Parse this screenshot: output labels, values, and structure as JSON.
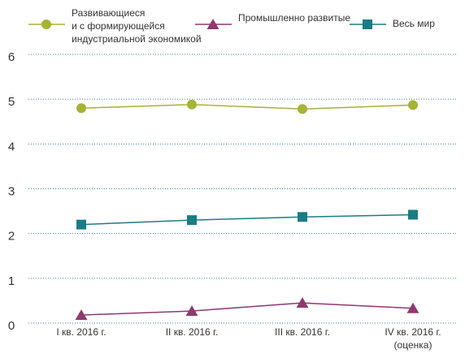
{
  "chart_data": {
    "type": "line",
    "categories": [
      "I кв. 2016 г.",
      "II кв. 2016 г.",
      "III кв. 2016 г.",
      "IV кв. 2016 г.\n(оценка)"
    ],
    "series": [
      {
        "name": "Развивающиеся\nи с формирующейся\nиндустриальной экономикой",
        "color": "#a5b336",
        "marker": "circle",
        "values": [
          4.8,
          4.88,
          4.78,
          4.87
        ]
      },
      {
        "name": "Промышленно развитые",
        "color": "#8e3a6f",
        "marker": "triangle",
        "values": [
          0.18,
          0.27,
          0.45,
          0.33
        ]
      },
      {
        "name": "Весь мир",
        "color": "#1a7c84",
        "marker": "square",
        "values": [
          2.2,
          2.3,
          2.37,
          2.42
        ]
      }
    ],
    "ylim": [
      0,
      6
    ],
    "yticks": [
      0,
      1,
      2,
      3,
      4,
      5,
      6
    ],
    "grid": true
  }
}
